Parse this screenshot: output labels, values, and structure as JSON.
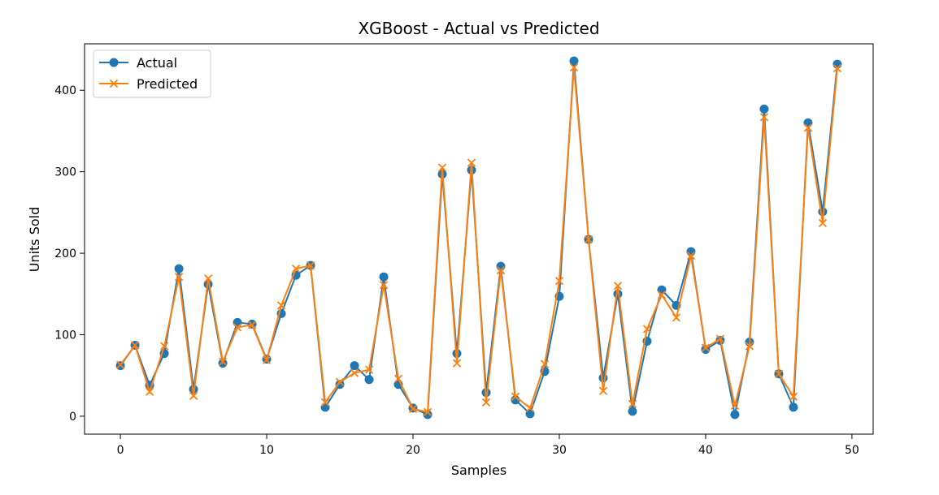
{
  "chart_data": {
    "type": "line",
    "title": "XGBoost - Actual vs Predicted",
    "xlabel": "Samples",
    "ylabel": "Units Sold",
    "xlim": [
      -2.45,
      51.45
    ],
    "ylim": [
      -22,
      457
    ],
    "xticks": [
      0,
      10,
      20,
      30,
      40,
      50
    ],
    "yticks": [
      0,
      100,
      200,
      300,
      400
    ],
    "grid": false,
    "legend": "top-left",
    "x": [
      0,
      1,
      2,
      3,
      4,
      5,
      6,
      7,
      8,
      9,
      10,
      11,
      12,
      13,
      14,
      15,
      16,
      17,
      18,
      19,
      20,
      21,
      22,
      23,
      24,
      25,
      26,
      27,
      28,
      29,
      30,
      31,
      32,
      33,
      34,
      35,
      36,
      37,
      38,
      39,
      40,
      41,
      42,
      43,
      44,
      45,
      46,
      47,
      48,
      49
    ],
    "series": [
      {
        "name": "Actual",
        "color": "#1f77b4",
        "marker": "circle",
        "values": [
          62,
          87,
          38,
          77,
          181,
          33,
          162,
          65,
          115,
          113,
          70,
          126,
          173,
          185,
          11,
          39,
          62,
          45,
          171,
          39,
          10,
          2,
          297,
          77,
          302,
          29,
          184,
          20,
          3,
          55,
          147,
          436,
          217,
          47,
          150,
          6,
          92,
          155,
          136,
          202,
          82,
          93,
          2,
          91,
          377,
          52,
          11,
          360,
          251,
          432
        ]
      },
      {
        "name": "Predicted",
        "color": "#ff7f0e",
        "marker": "x",
        "values": [
          63,
          87,
          30,
          86,
          171,
          25,
          169,
          67,
          109,
          112,
          69,
          136,
          181,
          185,
          17,
          42,
          53,
          57,
          161,
          46,
          9,
          5,
          305,
          65,
          311,
          17,
          179,
          24,
          10,
          64,
          166,
          428,
          217,
          31,
          160,
          15,
          107,
          149,
          121,
          197,
          84,
          95,
          13,
          86,
          367,
          52,
          24,
          354,
          237,
          427
        ]
      }
    ]
  }
}
